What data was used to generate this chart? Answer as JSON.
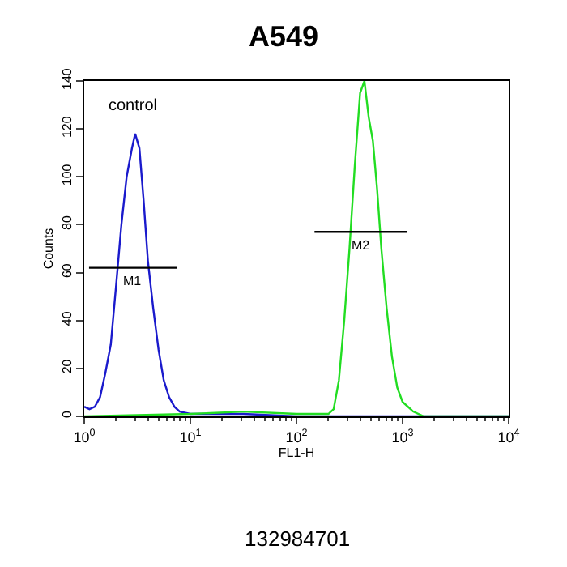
{
  "chart_data": {
    "type": "line",
    "title": "A549",
    "xlabel": "FL1-H",
    "ylabel": "Counts",
    "log": "x",
    "xlim": [
      1,
      10000
    ],
    "ylim": [
      0,
      140
    ],
    "xticks": [
      {
        "value": 1,
        "label": "10$^{0}$"
      },
      {
        "value": 10,
        "label": "10$^{1}$"
      },
      {
        "value": 100,
        "label": "10$^{2}$"
      },
      {
        "value": 1000,
        "label": "10$^{3}$"
      },
      {
        "value": 10000,
        "label": "10$^{4}$"
      }
    ],
    "yticks": [
      0,
      20,
      40,
      60,
      80,
      100,
      120,
      140
    ],
    "marker": "none",
    "line_style": "solid",
    "series": [
      {
        "color": "#1a1acc",
        "x": [
          1,
          1.12,
          1.26,
          1.41,
          1.58,
          1.78,
          2.0,
          2.24,
          2.51,
          2.82,
          3.02,
          3.31,
          3.63,
          3.98,
          4.47,
          5.01,
          5.62,
          6.31,
          7.08,
          7.94,
          10,
          31.6,
          100,
          10000
        ],
        "values": [
          4,
          3,
          4,
          8,
          18,
          30,
          55,
          80,
          100,
          112,
          118,
          112,
          90,
          65,
          45,
          28,
          15,
          8,
          4,
          2,
          1,
          1,
          0,
          0
        ]
      },
      {
        "color": "#22dd22",
        "x": [
          1,
          10,
          31.6,
          100,
          200,
          224,
          251,
          282,
          316,
          355,
          398,
          437,
          479,
          525,
          575,
          631,
          708,
          794,
          891,
          1000,
          1259,
          1585,
          10000
        ],
        "values": [
          0,
          1,
          2,
          1,
          1,
          3,
          15,
          40,
          70,
          105,
          135,
          140,
          125,
          115,
          95,
          70,
          45,
          25,
          12,
          6,
          2,
          0,
          0
        ]
      },
      {
        "color": "#000000",
        "x": [
          1.11,
          7.5
        ],
        "values": [
          62,
          62
        ]
      },
      {
        "color": "#000000",
        "x": [
          148,
          1100
        ],
        "values": [
          77,
          77
        ]
      }
    ],
    "annotations": [
      "control",
      "M1",
      "M2",
      "132984701"
    ]
  }
}
